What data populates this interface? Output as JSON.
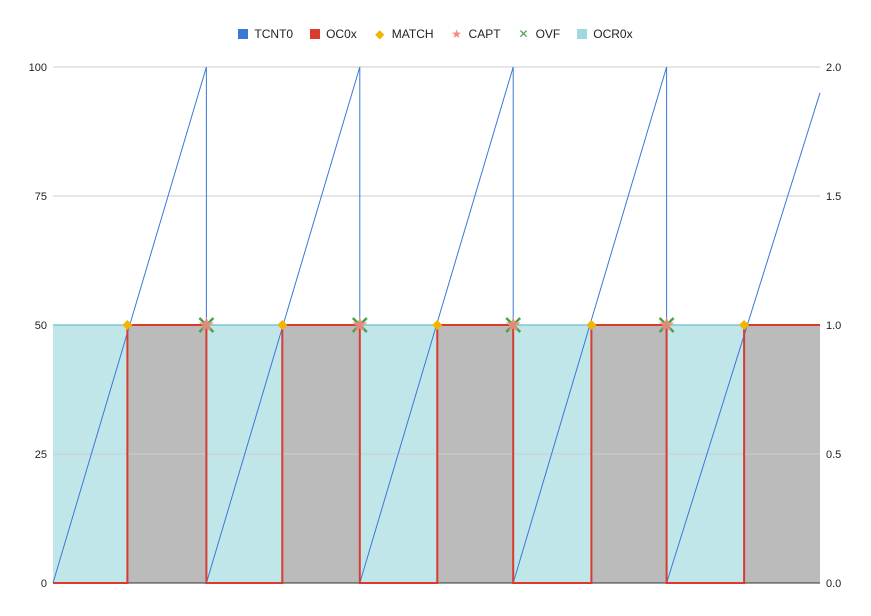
{
  "legend": [
    {
      "key": "tcnt0",
      "label": "TCNT0",
      "color": "#3a78d8",
      "shape": "square"
    },
    {
      "key": "oc0x",
      "label": "OC0x",
      "color": "#d93b2f",
      "shape": "square"
    },
    {
      "key": "match",
      "label": "MATCH",
      "color": "#f4b400",
      "shape": "diamond"
    },
    {
      "key": "capt",
      "label": "CAPT",
      "color": "#f28b82",
      "shape": "star"
    },
    {
      "key": "ovf",
      "label": "OVF",
      "color": "#4aa143",
      "shape": "x"
    },
    {
      "key": "ocr0x",
      "label": "OCR0x",
      "color": "#9dd9df",
      "shape": "square"
    }
  ],
  "chart_data": {
    "type": "line",
    "xlim": [
      0,
      100
    ],
    "ylim_left": [
      0,
      100
    ],
    "ylim_right": [
      0,
      2.0
    ],
    "left_ticks": [
      "0",
      "25",
      "50",
      "75",
      "100"
    ],
    "right_ticks": [
      "0.0",
      "0.5",
      "1.0",
      "1.5",
      "2.0"
    ],
    "grid": true,
    "legend_position": "top",
    "series": [
      {
        "name": "TCNT0",
        "axis": "left",
        "x": [
          0,
          20,
          20,
          40,
          40,
          60,
          60,
          80,
          80,
          100
        ],
        "y": [
          0,
          100,
          0,
          100,
          0,
          100,
          0,
          100,
          0,
          95
        ]
      },
      {
        "name": "OC0x",
        "axis": "right",
        "x": [
          0,
          9.7,
          9.7,
          20,
          20,
          29.9,
          29.9,
          40,
          40,
          50.1,
          50.1,
          60,
          60,
          70.2,
          70.2,
          80,
          80,
          90.1,
          90.1,
          100
        ],
        "y": [
          0,
          0,
          1,
          1,
          0,
          0,
          1,
          1,
          0,
          0,
          1,
          1,
          0,
          0,
          1,
          1,
          0,
          0,
          1,
          1
        ]
      },
      {
        "name": "MATCH",
        "axis": "left",
        "x": [
          9.7,
          29.9,
          50.1,
          70.2,
          90.1
        ],
        "y": [
          50,
          50,
          50,
          50,
          50
        ]
      },
      {
        "name": "CAPT",
        "axis": "left",
        "x": [
          20,
          40,
          60,
          80
        ],
        "y": [
          50,
          50,
          50,
          50
        ]
      },
      {
        "name": "OVF",
        "axis": "left",
        "x": [
          20,
          40,
          60,
          80
        ],
        "y": [
          50,
          50,
          50,
          50
        ]
      },
      {
        "name": "OCR0x",
        "axis": "left",
        "type": "area",
        "x": [
          0,
          100
        ],
        "y": [
          50,
          50
        ]
      }
    ]
  }
}
